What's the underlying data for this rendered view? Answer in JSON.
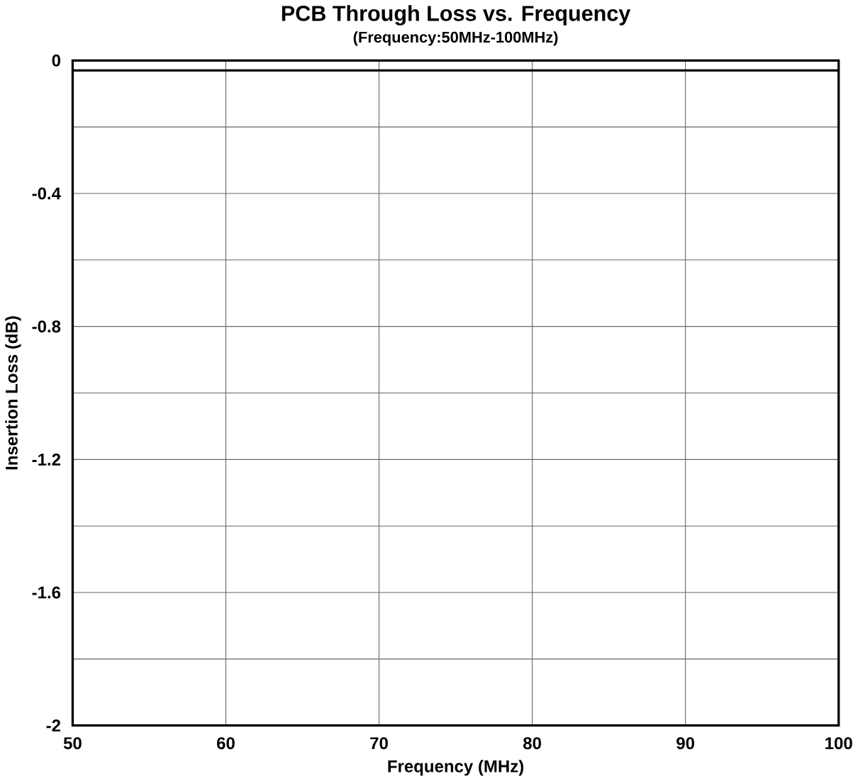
{
  "chart_data": {
    "type": "line",
    "title": "PCB Through Loss vs. Frequency",
    "subtitle": "(Frequency:50MHz-100MHz)",
    "xlabel": "Frequency (MHz)",
    "ylabel": "Insertion Loss (dB)",
    "x": [
      50,
      100
    ],
    "series": [
      {
        "color": "#000000",
        "values": [
          -0.03,
          -0.03
        ]
      }
    ],
    "xlim": [
      50,
      100
    ],
    "xticks": [
      50,
      60,
      70,
      80,
      90,
      100
    ],
    "ylim": [
      -2,
      0
    ],
    "yticks": [
      {
        "value": -2,
        "label": "-2"
      },
      {
        "value": -1.8,
        "label": null
      },
      {
        "value": -1.6,
        "label": "-1.6"
      },
      {
        "value": -1.4,
        "label": null
      },
      {
        "value": -1.2,
        "label": "-1.2"
      },
      {
        "value": -1,
        "label": null
      },
      {
        "value": -0.8,
        "label": "-0.8"
      },
      {
        "value": -0.6,
        "label": null
      },
      {
        "value": -0.4,
        "label": "-0.4"
      },
      {
        "value": -0.2,
        "label": null
      },
      {
        "value": 0,
        "label": "0"
      }
    ],
    "grid": true,
    "marker": "none",
    "line_style": "solid"
  }
}
